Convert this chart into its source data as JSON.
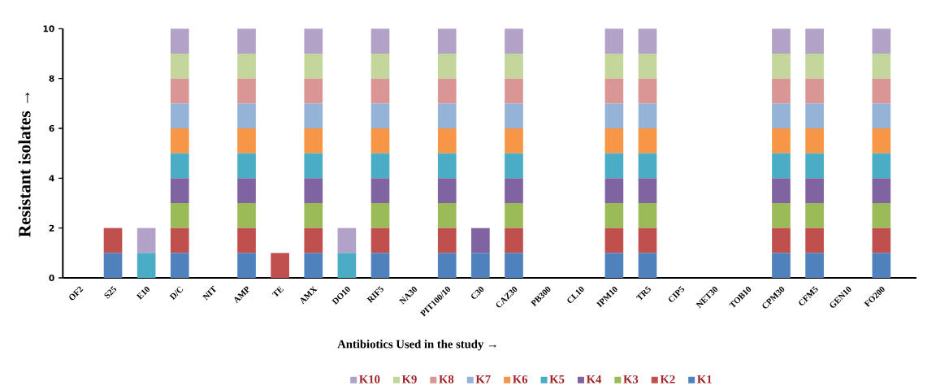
{
  "chart_data": {
    "type": "bar",
    "stacked": true,
    "xlabel": "Antibiotics Used in the study →",
    "ylabel": "Resistant  isolates →",
    "categories": [
      "OF2",
      "S25",
      "E10",
      "D/C",
      "NIT",
      "AMP",
      "TE",
      "AMX",
      "DO10",
      "RIF5",
      "NA30",
      "PIT100/10",
      "C30",
      "CAZ30",
      "PB300",
      "CL10",
      "IPM10",
      "TR5",
      "CIP5",
      "NET30",
      "TOB10",
      "CPM30",
      "CFM5",
      "GEN10",
      "FO200"
    ],
    "series": [
      {
        "name": "K1",
        "color": "#4f81bd",
        "values": [
          0,
          1,
          0,
          1,
          0,
          1,
          0,
          1,
          0,
          1,
          0,
          1,
          1,
          1,
          0,
          0,
          1,
          1,
          0,
          0,
          0,
          1,
          1,
          0,
          1
        ]
      },
      {
        "name": "K2",
        "color": "#c0504d",
        "values": [
          0,
          1,
          0,
          1,
          0,
          1,
          1,
          1,
          0,
          1,
          0,
          1,
          0,
          1,
          0,
          0,
          1,
          1,
          0,
          0,
          0,
          1,
          1,
          0,
          1
        ]
      },
      {
        "name": "K3",
        "color": "#9bbb59",
        "values": [
          0,
          0,
          0,
          1,
          0,
          1,
          0,
          1,
          0,
          1,
          0,
          1,
          0,
          1,
          0,
          0,
          1,
          1,
          0,
          0,
          0,
          1,
          1,
          0,
          1
        ]
      },
      {
        "name": "K4",
        "color": "#8064a2",
        "values": [
          0,
          0,
          0,
          1,
          0,
          1,
          0,
          1,
          0,
          1,
          0,
          1,
          1,
          1,
          0,
          0,
          1,
          1,
          0,
          0,
          0,
          1,
          1,
          0,
          1
        ]
      },
      {
        "name": "K5",
        "color": "#4bacc6",
        "values": [
          0,
          0,
          1,
          1,
          0,
          1,
          0,
          1,
          1,
          1,
          0,
          1,
          0,
          1,
          0,
          0,
          1,
          1,
          0,
          0,
          0,
          1,
          1,
          0,
          1
        ]
      },
      {
        "name": "K6",
        "color": "#f79646",
        "values": [
          0,
          0,
          0,
          1,
          0,
          1,
          0,
          1,
          0,
          1,
          0,
          1,
          0,
          1,
          0,
          0,
          1,
          1,
          0,
          0,
          0,
          1,
          1,
          0,
          1
        ]
      },
      {
        "name": "K7",
        "color": "#95b3d7",
        "values": [
          0,
          0,
          0,
          1,
          0,
          1,
          0,
          1,
          0,
          1,
          0,
          1,
          0,
          1,
          0,
          0,
          1,
          1,
          0,
          0,
          0,
          1,
          1,
          0,
          1
        ]
      },
      {
        "name": "K8",
        "color": "#d99694",
        "values": [
          0,
          0,
          0,
          1,
          0,
          1,
          0,
          1,
          0,
          1,
          0,
          1,
          0,
          1,
          0,
          0,
          1,
          1,
          0,
          0,
          0,
          1,
          1,
          0,
          1
        ]
      },
      {
        "name": "K9",
        "color": "#c3d69b",
        "values": [
          0,
          0,
          0,
          1,
          0,
          1,
          0,
          1,
          0,
          1,
          0,
          1,
          0,
          1,
          0,
          0,
          1,
          1,
          0,
          0,
          0,
          1,
          1,
          0,
          1
        ]
      },
      {
        "name": "K10",
        "color": "#b3a2c7",
        "values": [
          0,
          0,
          1,
          1,
          0,
          1,
          0,
          1,
          1,
          1,
          0,
          1,
          0,
          1,
          0,
          0,
          1,
          1,
          0,
          0,
          0,
          1,
          1,
          0,
          1
        ]
      }
    ],
    "ylim": [
      0,
      10
    ],
    "yticks": [
      0,
      2,
      4,
      6,
      8,
      10
    ],
    "legend": "bottom"
  }
}
